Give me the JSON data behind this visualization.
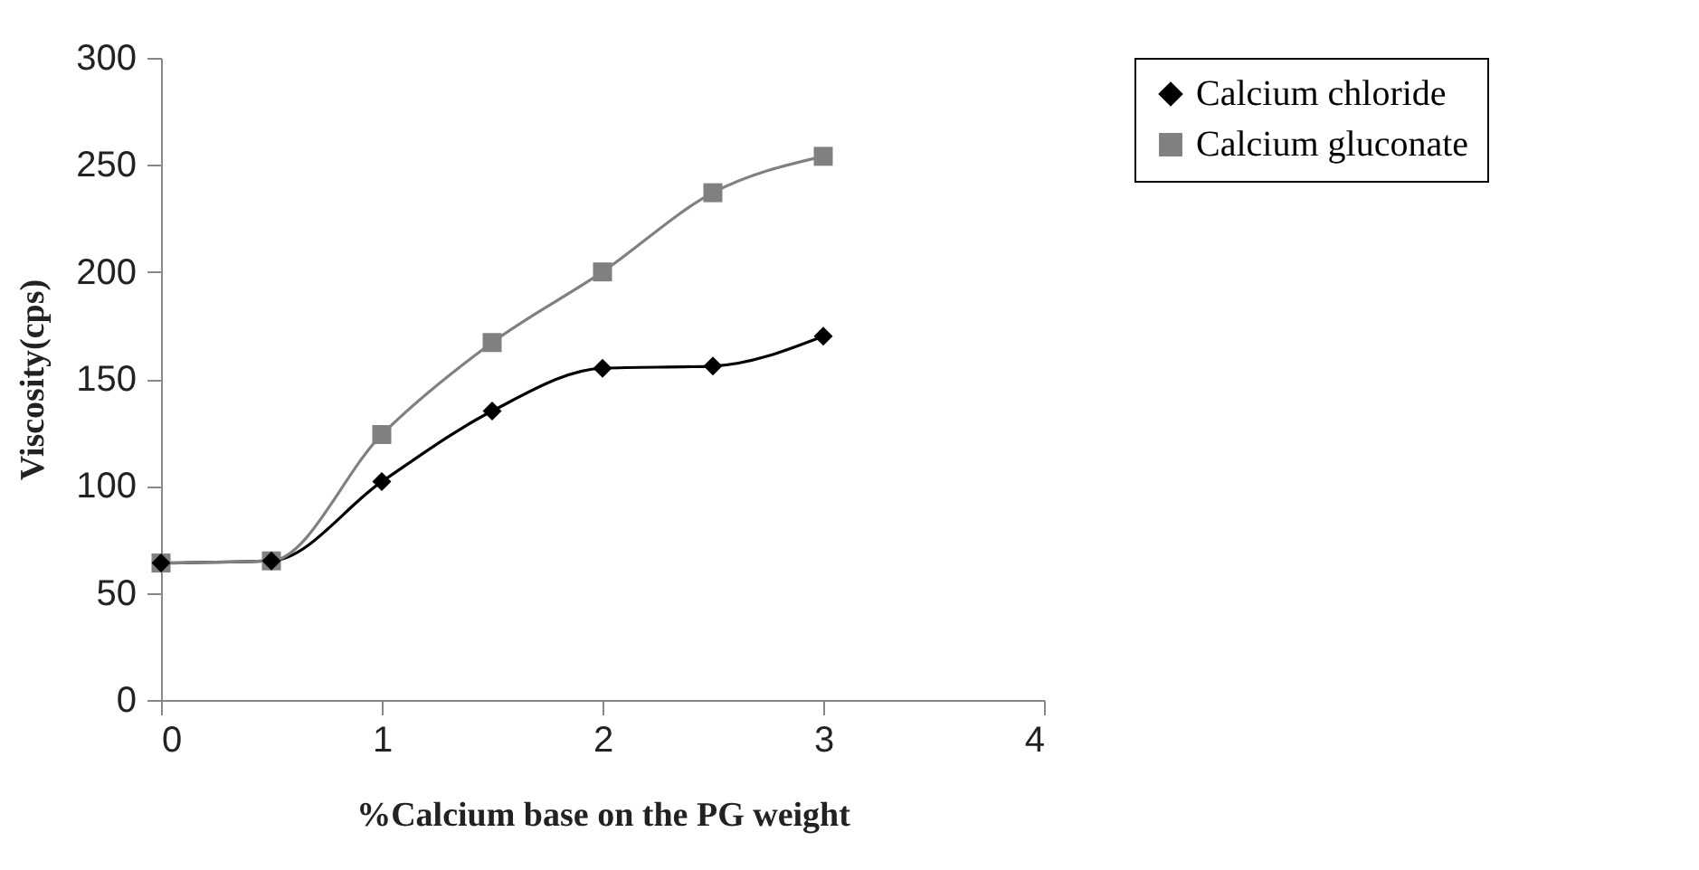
{
  "chart_data": {
    "type": "line",
    "xlabel": "%Calcium base on the PG weight",
    "ylabel": "Viscosity(cps)",
    "x": [
      0,
      0.5,
      1,
      1.5,
      2,
      2.5,
      3
    ],
    "series": [
      {
        "name": "Calcium chloride",
        "color": "#000000",
        "marker": "diamond",
        "values": [
          64,
          65,
          102,
          135,
          155,
          156,
          170
        ]
      },
      {
        "name": "Calcium gluconate",
        "color": "#808080",
        "marker": "square",
        "values": [
          64,
          65,
          124,
          167,
          200,
          237,
          254
        ]
      }
    ],
    "xlim": [
      0,
      4
    ],
    "xticks": [
      0,
      1,
      2,
      3,
      4
    ],
    "ylim": [
      0,
      300
    ],
    "yticks": [
      0,
      50,
      100,
      150,
      200,
      250,
      300
    ],
    "grid": false,
    "legend": "right"
  }
}
